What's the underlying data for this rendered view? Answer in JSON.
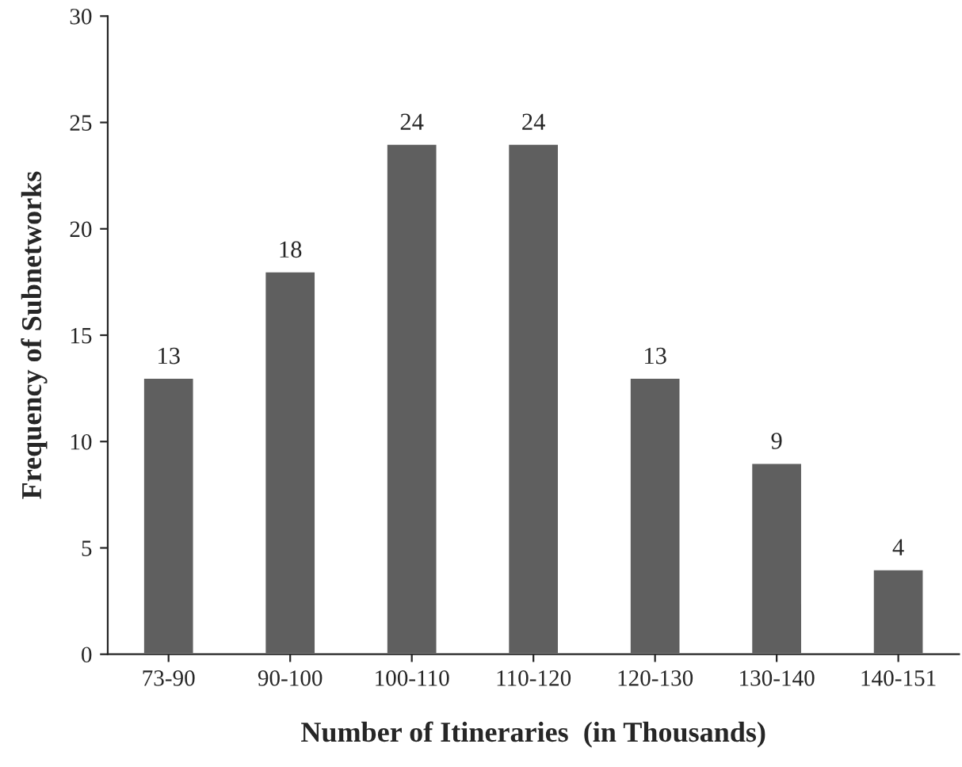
{
  "chart_data": {
    "type": "bar",
    "xlabel": "Number of Itineraries  (in Thousands)",
    "ylabel": "Frequency of Subnetworks",
    "categories": [
      "73-90",
      "90-100",
      "100-110",
      "110-120",
      "120-130",
      "130-140",
      "140-151"
    ],
    "values": [
      13,
      18,
      24,
      24,
      13,
      9,
      4
    ],
    "color": "#5f5f5f",
    "ylim": [
      0,
      30
    ],
    "yticks": [
      0,
      5,
      10,
      15,
      20,
      25,
      30
    ],
    "grid": false,
    "data_labels": true
  }
}
